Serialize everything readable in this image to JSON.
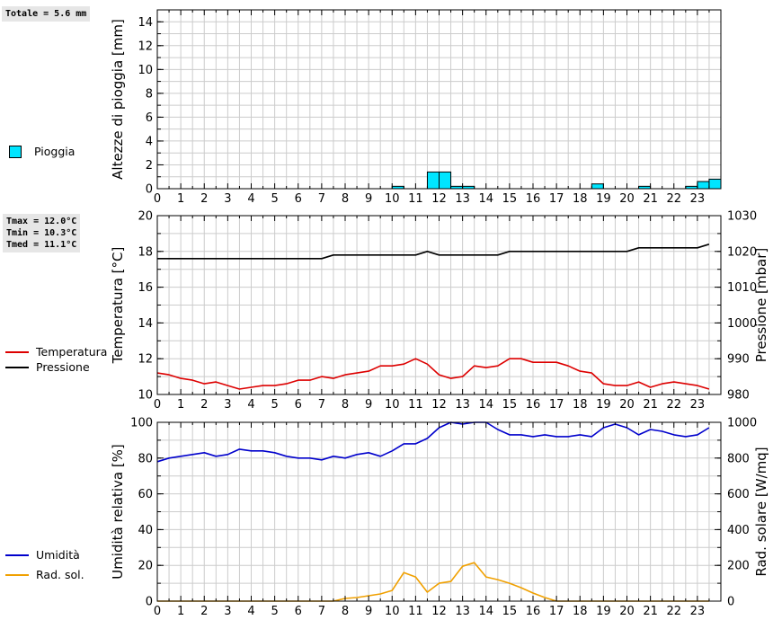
{
  "summary": {
    "rain_total": "Totale = 5.6 mm",
    "tmax": "Tmax = 12.0°C",
    "tmin": "Tmin = 10.3°C",
    "tmed": "Tmed = 11.1°C"
  },
  "legend": {
    "rain": "Pioggia",
    "temperature": "Temperatura",
    "pressure": "Pressione",
    "humidity": "Umidità",
    "solar": "Rad. sol."
  },
  "colors": {
    "rain": "#00e5ff",
    "temperature": "#dd0000",
    "pressure": "#000000",
    "humidity": "#0000cc",
    "solar": "#f0a000",
    "grid": "#cccccc"
  },
  "chart_data": [
    {
      "type": "bar",
      "title": "",
      "xlabel": "",
      "ylabel": "Altezze di pioggia [mm]",
      "xlim": [
        0,
        24
      ],
      "ylim": [
        0,
        15
      ],
      "yticks": [
        0,
        2,
        4,
        6,
        8,
        10,
        12,
        14
      ],
      "xticks": [
        "0",
        "1",
        "2",
        "3",
        "4",
        "5",
        "6",
        "7",
        "8",
        "9",
        "10",
        "11",
        "12",
        "13",
        "14",
        "15",
        "16",
        "17",
        "18",
        "19",
        "20",
        "21",
        "22",
        "23"
      ],
      "bar_width_h": 0.5,
      "series": [
        {
          "name": "Pioggia",
          "x": [
            10.0,
            11.5,
            12.0,
            12.5,
            13.0,
            18.5,
            20.5,
            22.5,
            23.0,
            23.5
          ],
          "values": [
            0.2,
            1.4,
            1.4,
            0.2,
            0.2,
            0.4,
            0.2,
            0.2,
            0.6,
            0.8
          ]
        }
      ]
    },
    {
      "type": "line",
      "title": "",
      "xlabel": "",
      "ylabel": "Temperatura [°C]",
      "y2label": "Pressione [mbar]",
      "xlim": [
        0,
        24
      ],
      "ylim": [
        10,
        20
      ],
      "y2lim": [
        980,
        1030
      ],
      "yticks": [
        10,
        12,
        14,
        16,
        18,
        20
      ],
      "y2ticks": [
        980,
        990,
        1000,
        1010,
        1020,
        1030
      ],
      "xticks": [
        "0",
        "1",
        "2",
        "3",
        "4",
        "5",
        "6",
        "7",
        "8",
        "9",
        "10",
        "11",
        "12",
        "13",
        "14",
        "15",
        "16",
        "17",
        "18",
        "19",
        "20",
        "21",
        "22",
        "23"
      ],
      "series": [
        {
          "name": "Temperatura",
          "axis": "left",
          "x": [
            0,
            0.5,
            1,
            1.5,
            2,
            2.5,
            3,
            3.5,
            4,
            4.5,
            5,
            5.5,
            6,
            6.5,
            7,
            7.5,
            8,
            8.5,
            9,
            9.5,
            10,
            10.5,
            11,
            11.5,
            12,
            12.5,
            13,
            13.5,
            14,
            14.5,
            15,
            15.5,
            16,
            16.5,
            17,
            17.5,
            18,
            18.5,
            19,
            19.5,
            20,
            20.5,
            21,
            21.5,
            22,
            22.5,
            23,
            23.5
          ],
          "values": [
            11.2,
            11.1,
            10.9,
            10.8,
            10.6,
            10.7,
            10.5,
            10.3,
            10.4,
            10.5,
            10.5,
            10.6,
            10.8,
            10.8,
            11.0,
            10.9,
            11.1,
            11.2,
            11.3,
            11.6,
            11.6,
            11.7,
            12.0,
            11.7,
            11.1,
            10.9,
            11.0,
            11.6,
            11.5,
            11.6,
            12.0,
            12.0,
            11.8,
            11.8,
            11.8,
            11.6,
            11.3,
            11.2,
            10.6,
            10.5,
            10.5,
            10.7,
            10.4,
            10.6,
            10.7,
            10.6,
            10.5,
            10.3
          ]
        },
        {
          "name": "Pressione",
          "axis": "right",
          "x": [
            0,
            7,
            7.5,
            11,
            11.5,
            12,
            14.5,
            15,
            20,
            20.5,
            23,
            23.5
          ],
          "values": [
            1018,
            1018,
            1019,
            1019,
            1020,
            1019,
            1019,
            1020,
            1020,
            1021,
            1021,
            1022
          ]
        }
      ]
    },
    {
      "type": "line",
      "title": "",
      "xlabel": "",
      "ylabel": "Umidità relativa [%]",
      "y2label": "Rad. solare [W/mq]",
      "xlim": [
        0,
        24
      ],
      "ylim": [
        0,
        100
      ],
      "y2lim": [
        0,
        1000
      ],
      "yticks": [
        0,
        20,
        40,
        60,
        80,
        100
      ],
      "y2ticks": [
        0,
        200,
        400,
        600,
        800,
        1000
      ],
      "xticks": [
        "0",
        "1",
        "2",
        "3",
        "4",
        "5",
        "6",
        "7",
        "8",
        "9",
        "10",
        "11",
        "12",
        "13",
        "14",
        "15",
        "16",
        "17",
        "18",
        "19",
        "20",
        "21",
        "22",
        "23"
      ],
      "series": [
        {
          "name": "Umidità",
          "axis": "left",
          "x": [
            0,
            0.5,
            1,
            1.5,
            2,
            2.5,
            3,
            3.5,
            4,
            4.5,
            5,
            5.5,
            6,
            6.5,
            7,
            7.5,
            8,
            8.5,
            9,
            9.5,
            10,
            10.5,
            11,
            11.5,
            12,
            12.5,
            13,
            13.5,
            14,
            14.5,
            15,
            15.5,
            16,
            16.5,
            17,
            17.5,
            18,
            18.5,
            19,
            19.5,
            20,
            20.5,
            21,
            21.5,
            22,
            22.5,
            23,
            23.5
          ],
          "values": [
            78,
            80,
            81,
            82,
            83,
            81,
            82,
            85,
            84,
            84,
            83,
            81,
            80,
            80,
            79,
            81,
            80,
            82,
            83,
            81,
            84,
            88,
            88,
            91,
            97,
            100,
            99,
            100,
            100,
            96,
            93,
            93,
            92,
            93,
            92,
            92,
            93,
            92,
            97,
            99,
            97,
            93,
            96,
            95,
            93,
            92,
            93,
            97
          ]
        },
        {
          "name": "Rad. sol.",
          "axis": "right",
          "x": [
            0,
            0.5,
            1,
            1.5,
            2,
            2.5,
            3,
            3.5,
            4,
            4.5,
            5,
            5.5,
            6,
            6.5,
            7,
            7.5,
            8,
            8.5,
            9,
            9.5,
            10,
            10.5,
            11,
            11.5,
            12,
            12.5,
            13,
            13.5,
            14,
            14.5,
            15,
            15.5,
            16,
            16.5,
            17,
            17.5,
            18,
            18.5,
            19,
            19.5,
            20,
            20.5,
            21,
            21.5,
            22,
            22.5,
            23,
            23.5
          ],
          "values": [
            0,
            0,
            0,
            0,
            0,
            0,
            0,
            0,
            0,
            0,
            0,
            0,
            0,
            0,
            0,
            0,
            15,
            20,
            30,
            40,
            60,
            160,
            135,
            50,
            100,
            110,
            195,
            215,
            135,
            120,
            100,
            75,
            45,
            20,
            0,
            0,
            0,
            0,
            0,
            0,
            0,
            0,
            0,
            0,
            0,
            0,
            0,
            0
          ]
        }
      ]
    }
  ]
}
